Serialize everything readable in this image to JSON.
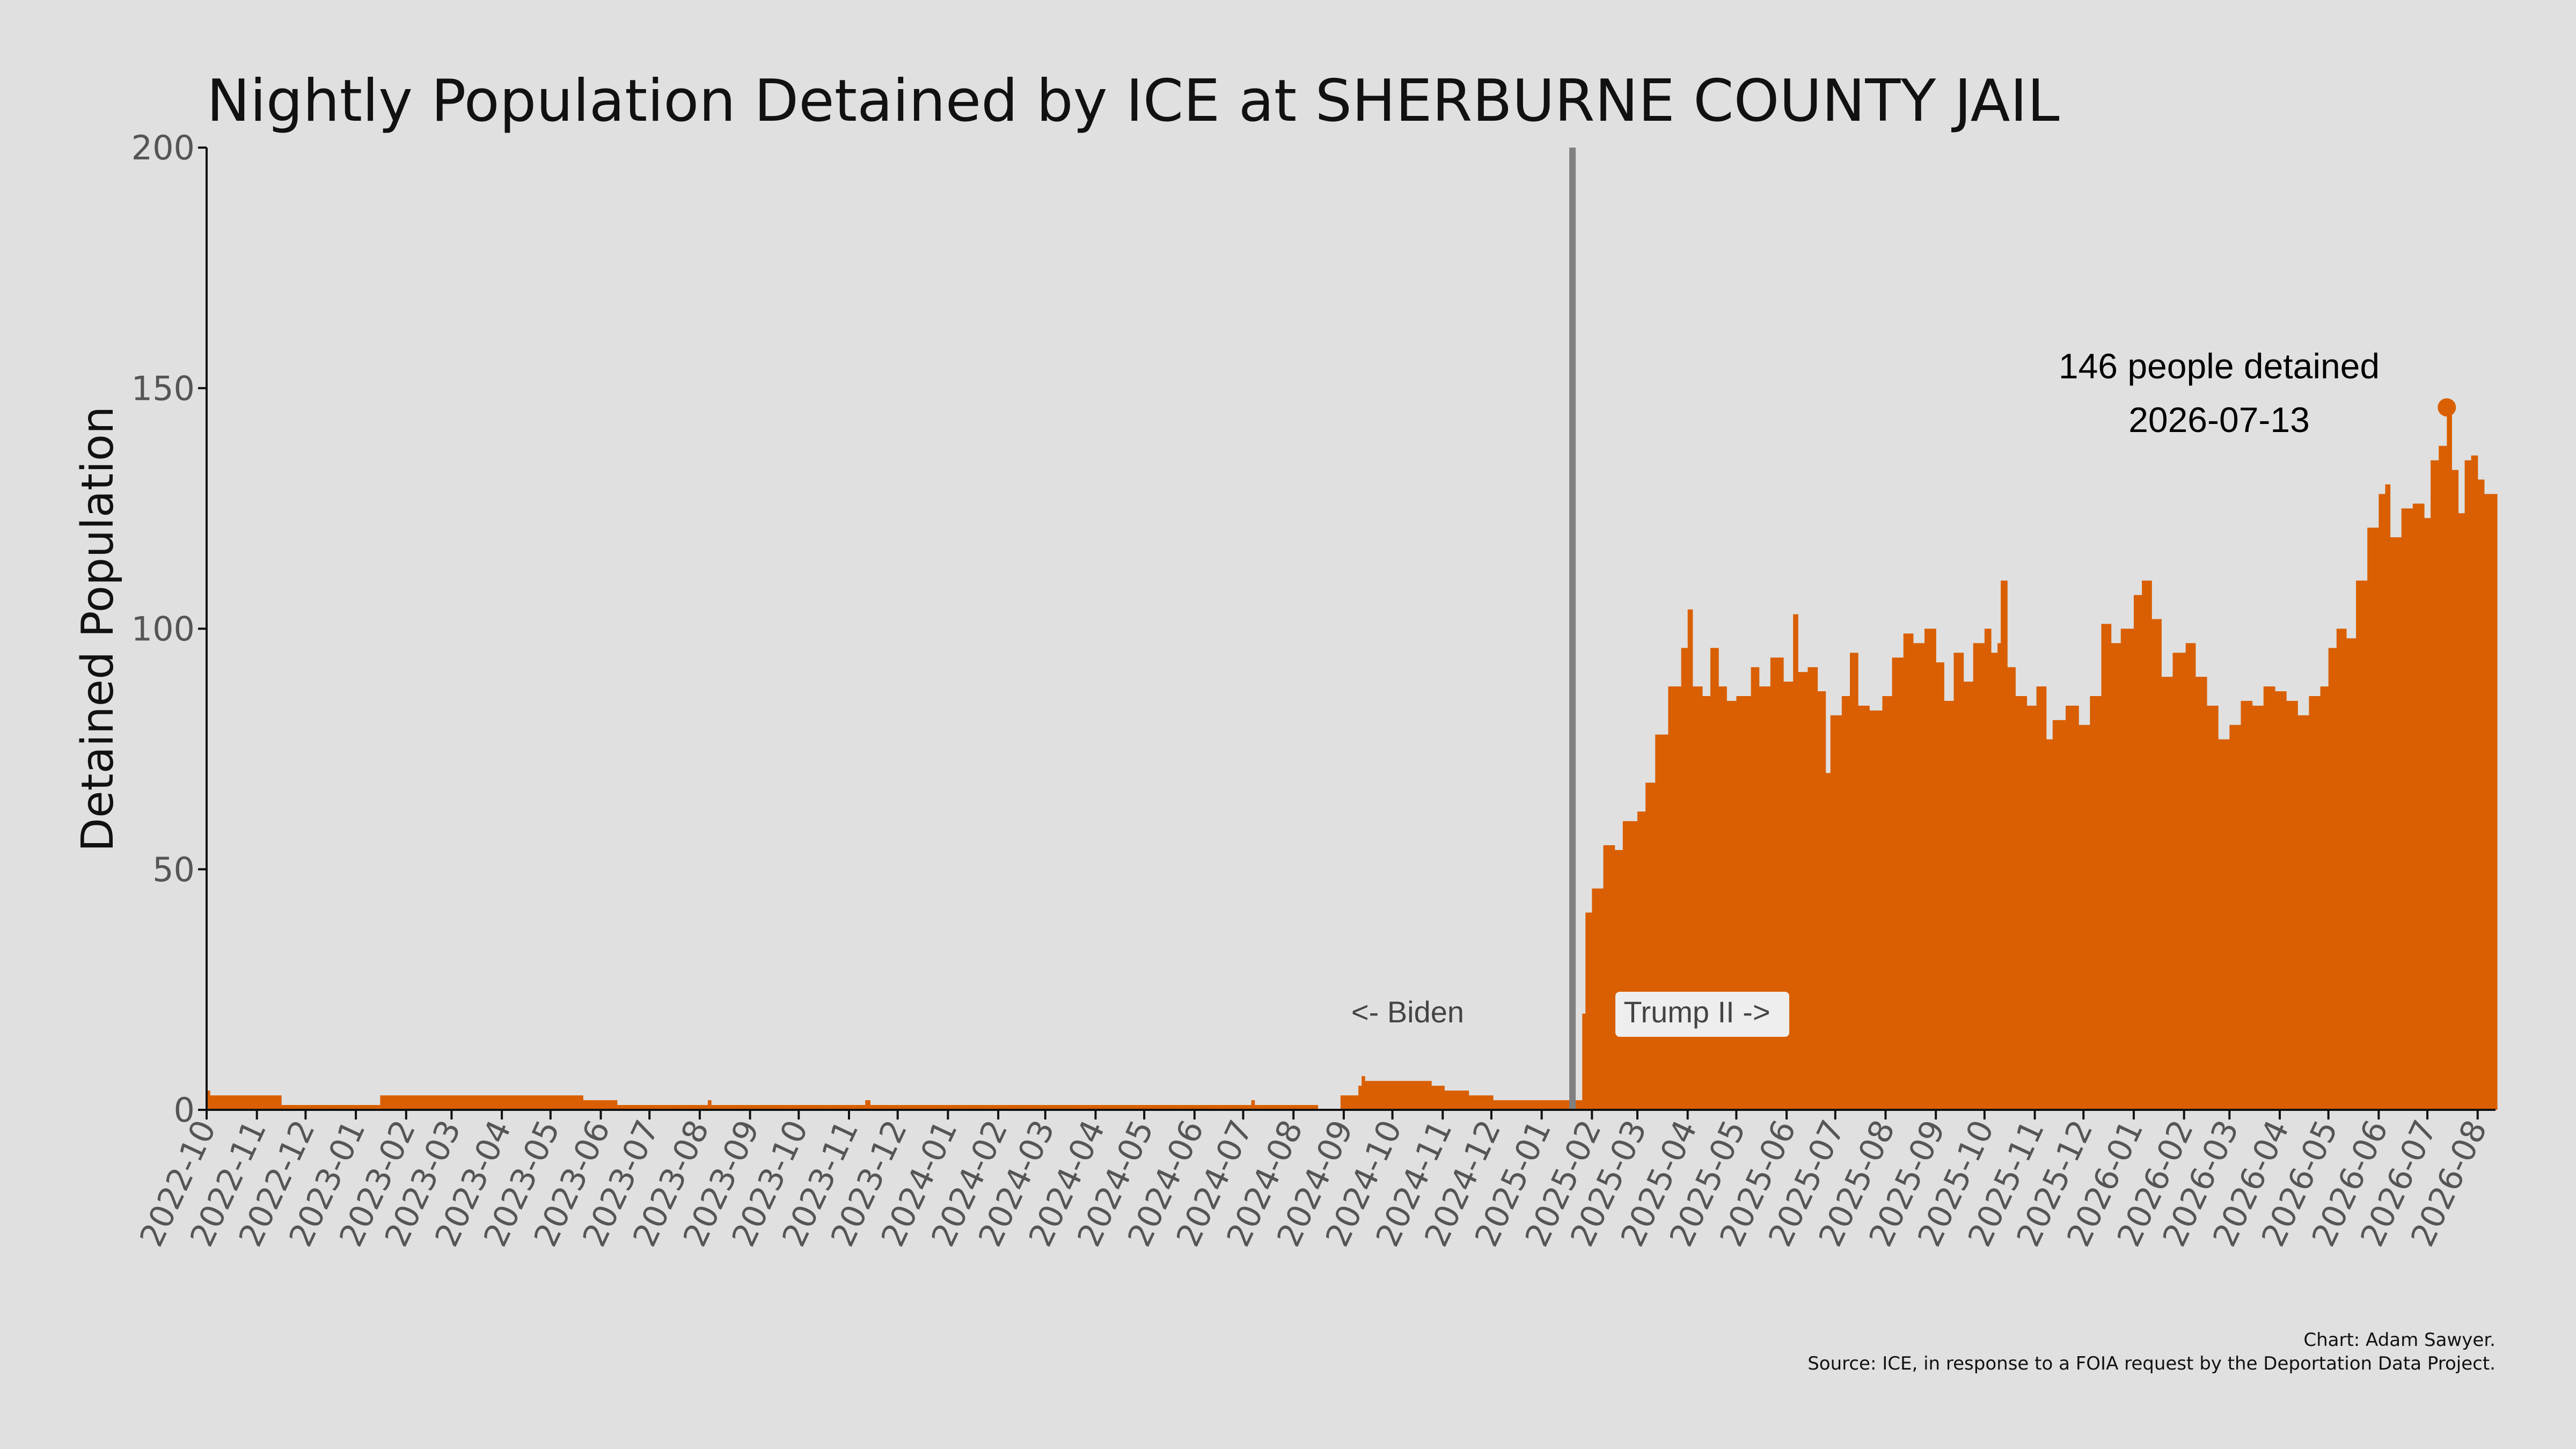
{
  "chart_data": {
    "type": "bar",
    "title": "Nightly Population Detained by ICE at SHERBURNE COUNTY JAIL",
    "ylabel": "Detained Population",
    "xlabel": "",
    "ylim": [
      0,
      200
    ],
    "yticks": [
      0,
      50,
      100,
      150,
      200
    ],
    "xlim": [
      "2022-10-01",
      "2026-08-12"
    ],
    "xtick_labels": [
      "2022-10",
      "2022-11",
      "2022-12",
      "2023-01",
      "2023-02",
      "2023-03",
      "2023-04",
      "2023-05",
      "2023-06",
      "2023-07",
      "2023-08",
      "2023-09",
      "2023-10",
      "2023-11",
      "2023-12",
      "2024-01",
      "2024-02",
      "2024-03",
      "2024-04",
      "2024-05",
      "2024-06",
      "2024-07",
      "2024-08",
      "2024-09",
      "2024-10",
      "2024-11",
      "2024-12",
      "2025-01",
      "2025-02",
      "2025-03",
      "2025-04",
      "2025-05",
      "2025-06",
      "2025-07",
      "2025-08",
      "2025-09",
      "2025-10",
      "2025-11",
      "2025-12",
      "2026-01",
      "2026-02",
      "2026-03",
      "2026-04",
      "2026-05",
      "2026-06",
      "2026-07",
      "2026-08"
    ],
    "bar_color": "#d95f02",
    "background_color": "#e0e0e0",
    "grid": false,
    "data_points": [
      [
        "2022-10-01",
        4
      ],
      [
        "2022-10-03",
        3
      ],
      [
        "2022-11-15",
        3
      ],
      [
        "2022-11-16",
        1
      ],
      [
        "2023-01-15",
        1
      ],
      [
        "2023-01-16",
        3
      ],
      [
        "2023-05-20",
        3
      ],
      [
        "2023-05-21",
        2
      ],
      [
        "2023-06-10",
        2
      ],
      [
        "2023-06-11",
        1
      ],
      [
        "2023-08-05",
        1
      ],
      [
        "2023-08-06",
        2
      ],
      [
        "2023-08-08",
        1
      ],
      [
        "2023-11-10",
        1
      ],
      [
        "2023-11-11",
        2
      ],
      [
        "2023-11-14",
        1
      ],
      [
        "2024-07-05",
        1
      ],
      [
        "2024-07-06",
        2
      ],
      [
        "2024-07-08",
        1
      ],
      [
        "2024-08-15",
        1
      ],
      [
        "2024-08-16",
        0
      ],
      [
        "2024-08-29",
        0
      ],
      [
        "2024-08-30",
        3
      ],
      [
        "2024-09-08",
        3
      ],
      [
        "2024-09-10",
        5
      ],
      [
        "2024-09-12",
        7
      ],
      [
        "2024-09-14",
        6
      ],
      [
        "2024-10-24",
        6
      ],
      [
        "2024-10-25",
        5
      ],
      [
        "2024-11-01",
        5
      ],
      [
        "2024-11-02",
        4
      ],
      [
        "2024-11-16",
        4
      ],
      [
        "2024-11-17",
        3
      ],
      [
        "2024-12-01",
        3
      ],
      [
        "2024-12-02",
        2
      ],
      [
        "2025-01-25",
        2
      ],
      [
        "2025-01-26",
        20
      ],
      [
        "2025-01-28",
        41
      ],
      [
        "2025-02-01",
        46
      ],
      [
        "2025-02-08",
        55
      ],
      [
        "2025-02-15",
        54
      ],
      [
        "2025-02-20",
        60
      ],
      [
        "2025-03-01",
        62
      ],
      [
        "2025-03-06",
        68
      ],
      [
        "2025-03-12",
        78
      ],
      [
        "2025-03-20",
        88
      ],
      [
        "2025-03-28",
        96
      ],
      [
        "2025-04-01",
        104
      ],
      [
        "2025-04-04",
        88
      ],
      [
        "2025-04-10",
        86
      ],
      [
        "2025-04-15",
        96
      ],
      [
        "2025-04-20",
        88
      ],
      [
        "2025-04-25",
        85
      ],
      [
        "2025-05-01",
        86
      ],
      [
        "2025-05-10",
        92
      ],
      [
        "2025-05-15",
        88
      ],
      [
        "2025-05-22",
        94
      ],
      [
        "2025-05-30",
        89
      ],
      [
        "2025-06-05",
        103
      ],
      [
        "2025-06-08",
        91
      ],
      [
        "2025-06-14",
        92
      ],
      [
        "2025-06-20",
        87
      ],
      [
        "2025-06-25",
        70
      ],
      [
        "2025-06-28",
        82
      ],
      [
        "2025-07-05",
        86
      ],
      [
        "2025-07-10",
        95
      ],
      [
        "2025-07-15",
        84
      ],
      [
        "2025-07-22",
        83
      ],
      [
        "2025-07-30",
        86
      ],
      [
        "2025-08-05",
        94
      ],
      [
        "2025-08-12",
        99
      ],
      [
        "2025-08-18",
        97
      ],
      [
        "2025-08-25",
        100
      ],
      [
        "2025-09-01",
        93
      ],
      [
        "2025-09-06",
        85
      ],
      [
        "2025-09-12",
        95
      ],
      [
        "2025-09-18",
        89
      ],
      [
        "2025-09-24",
        97
      ],
      [
        "2025-10-01",
        100
      ],
      [
        "2025-10-05",
        95
      ],
      [
        "2025-10-09",
        97
      ],
      [
        "2025-10-11",
        110
      ],
      [
        "2025-10-15",
        92
      ],
      [
        "2025-10-20",
        86
      ],
      [
        "2025-10-27",
        84
      ],
      [
        "2025-11-02",
        88
      ],
      [
        "2025-11-08",
        77
      ],
      [
        "2025-11-12",
        81
      ],
      [
        "2025-11-20",
        84
      ],
      [
        "2025-11-28",
        80
      ],
      [
        "2025-12-05",
        86
      ],
      [
        "2025-12-12",
        101
      ],
      [
        "2025-12-18",
        97
      ],
      [
        "2025-12-24",
        100
      ],
      [
        "2026-01-01",
        107
      ],
      [
        "2026-01-06",
        110
      ],
      [
        "2026-01-12",
        102
      ],
      [
        "2026-01-18",
        90
      ],
      [
        "2026-01-25",
        95
      ],
      [
        "2026-02-02",
        97
      ],
      [
        "2026-02-08",
        90
      ],
      [
        "2026-02-15",
        84
      ],
      [
        "2026-02-22",
        77
      ],
      [
        "2026-03-01",
        80
      ],
      [
        "2026-03-08",
        85
      ],
      [
        "2026-03-15",
        84
      ],
      [
        "2026-03-22",
        88
      ],
      [
        "2026-03-29",
        87
      ],
      [
        "2026-04-05",
        85
      ],
      [
        "2026-04-12",
        82
      ],
      [
        "2026-04-19",
        86
      ],
      [
        "2026-04-26",
        88
      ],
      [
        "2026-05-01",
        96
      ],
      [
        "2026-05-06",
        100
      ],
      [
        "2026-05-12",
        98
      ],
      [
        "2026-05-18",
        110
      ],
      [
        "2026-05-25",
        121
      ],
      [
        "2026-06-01",
        128
      ],
      [
        "2026-06-05",
        130
      ],
      [
        "2026-06-08",
        119
      ],
      [
        "2026-06-15",
        125
      ],
      [
        "2026-06-22",
        126
      ],
      [
        "2026-06-29",
        123
      ],
      [
        "2026-07-03",
        135
      ],
      [
        "2026-07-08",
        138
      ],
      [
        "2026-07-13",
        146
      ],
      [
        "2026-07-16",
        133
      ],
      [
        "2026-07-20",
        124
      ],
      [
        "2026-07-24",
        135
      ],
      [
        "2026-07-28",
        136
      ],
      [
        "2026-08-01",
        131
      ],
      [
        "2026-08-05",
        128
      ]
    ],
    "peak": {
      "date": "2026-07-13",
      "value": 146
    },
    "peak_label_line1": "146 people detained",
    "peak_label_line2": "2026-07-13",
    "divider_date": "2025-01-20",
    "divider_color": "#808080",
    "era_label_left": "<- Biden",
    "era_label_right": "Trump II ->"
  },
  "caption": {
    "line1": "Chart: Adam Sawyer.",
    "line2": "Source: ICE, in response to a FOIA request by the Deportation Data Project."
  }
}
